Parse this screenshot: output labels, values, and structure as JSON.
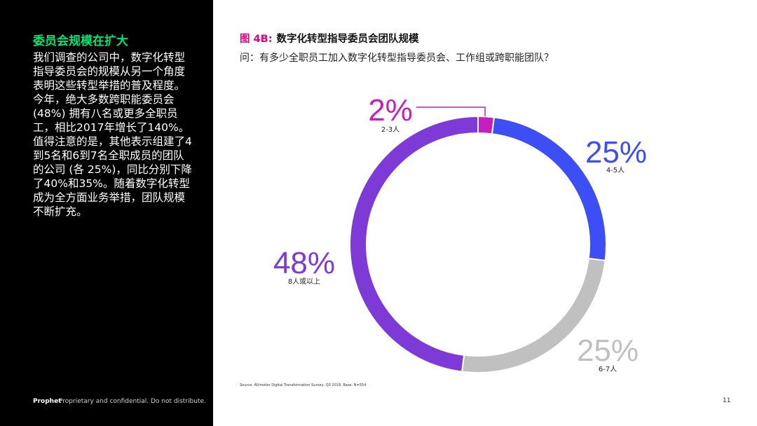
{
  "panel": {
    "heading": "委员会规模在扩大",
    "body": "我们调查的公司中，数字化转型指导委员会的规模从另一个角度表明这些转型举措的普及程度。今年，绝大多数跨职能委员会 (48%) 拥有八名或更多全职员工，相比2017年增长了140%。值得注意的是，其他表示组建了4到5名和6到7名全职成员的团队的公司 (各 25%)，同比分别下降了40%和35%。随着数字化转型成为全方面业务举措，团队规模不断扩充。"
  },
  "figure": {
    "label": "图 4B:",
    "title": "数字化转型指导委员会团队规模",
    "question": "问：有多少全职员工加入数字化转型指导委员会、工作组或跨职能团队？"
  },
  "footer": {
    "brand": "Prophet",
    "note": "Proprietary and confidential. Do not distribute.",
    "source": "Source: Altimeter Digital Transformation Survey, Q3 2018, Base: N=554",
    "page": "11"
  },
  "chart_data": {
    "type": "pie",
    "style": "donut",
    "title": "",
    "slices": [
      {
        "pct_label": "2%",
        "category": "2-3人",
        "value": 2,
        "color": "#c51fbe"
      },
      {
        "pct_label": "25%",
        "category": "4-5人",
        "value": 25,
        "color": "#3d4ef5"
      },
      {
        "pct_label": "25%",
        "category": "6-7人",
        "value": 25,
        "color": "#c0c0c0"
      },
      {
        "pct_label": "48%",
        "category": "8人或以上",
        "value": 48,
        "color": "#7e3ad6"
      }
    ]
  }
}
